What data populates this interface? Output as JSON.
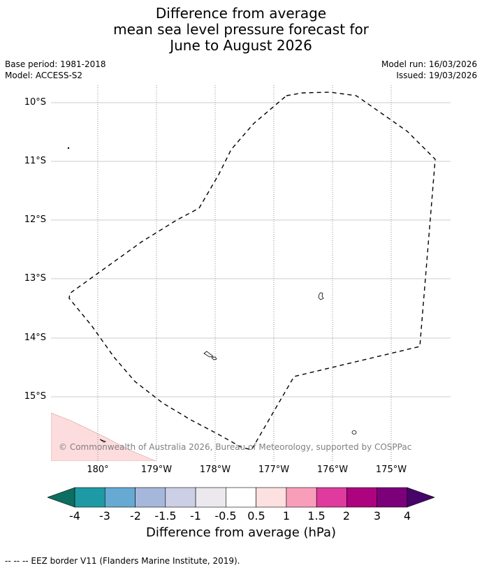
{
  "title": {
    "line1": "Difference from average",
    "line2": "mean sea level pressure forecast for",
    "line3": "June to August 2026"
  },
  "meta": {
    "base_period": "Base period: 1981-2018",
    "model": "Model: ACCESS-S2",
    "model_run": "Model run: 16/03/2026",
    "issued": "Issued: 19/03/2026"
  },
  "map": {
    "latitude_labels": [
      "10°S",
      "11°S",
      "12°S",
      "13°S",
      "14°S",
      "15°S"
    ],
    "longitude_labels": [
      "180°",
      "179°W",
      "178°W",
      "177°W",
      "176°W",
      "175°W"
    ],
    "copyright": "© Commonwealth of Australia 2026, Bureau of Meteorology, supported by COSPPac",
    "boundary_style": "dashed black line (EEZ)",
    "shaded_area_color": "#fcdcdc",
    "shaded_area_category": "0.5 to 1"
  },
  "colorbar": {
    "tick_labels": [
      "-4",
      "-3",
      "-2",
      "-1.5",
      "-1",
      "-0.5",
      "0.5",
      "1",
      "1.5",
      "2",
      "3",
      "4"
    ],
    "colors": [
      "#0e6e61",
      "#1e9aa4",
      "#66aad4",
      "#a5b8dc",
      "#cdcfe7",
      "#ebe9ee",
      "#ffffff",
      "#fde0e0",
      "#f89ebb",
      "#df3a9d",
      "#ae037f",
      "#7b007a",
      "#47046a"
    ],
    "title": "Difference from average (hPa)"
  },
  "footnote": "--  --  -- EEZ border V11 (Flanders Marine Institute, 2019)."
}
